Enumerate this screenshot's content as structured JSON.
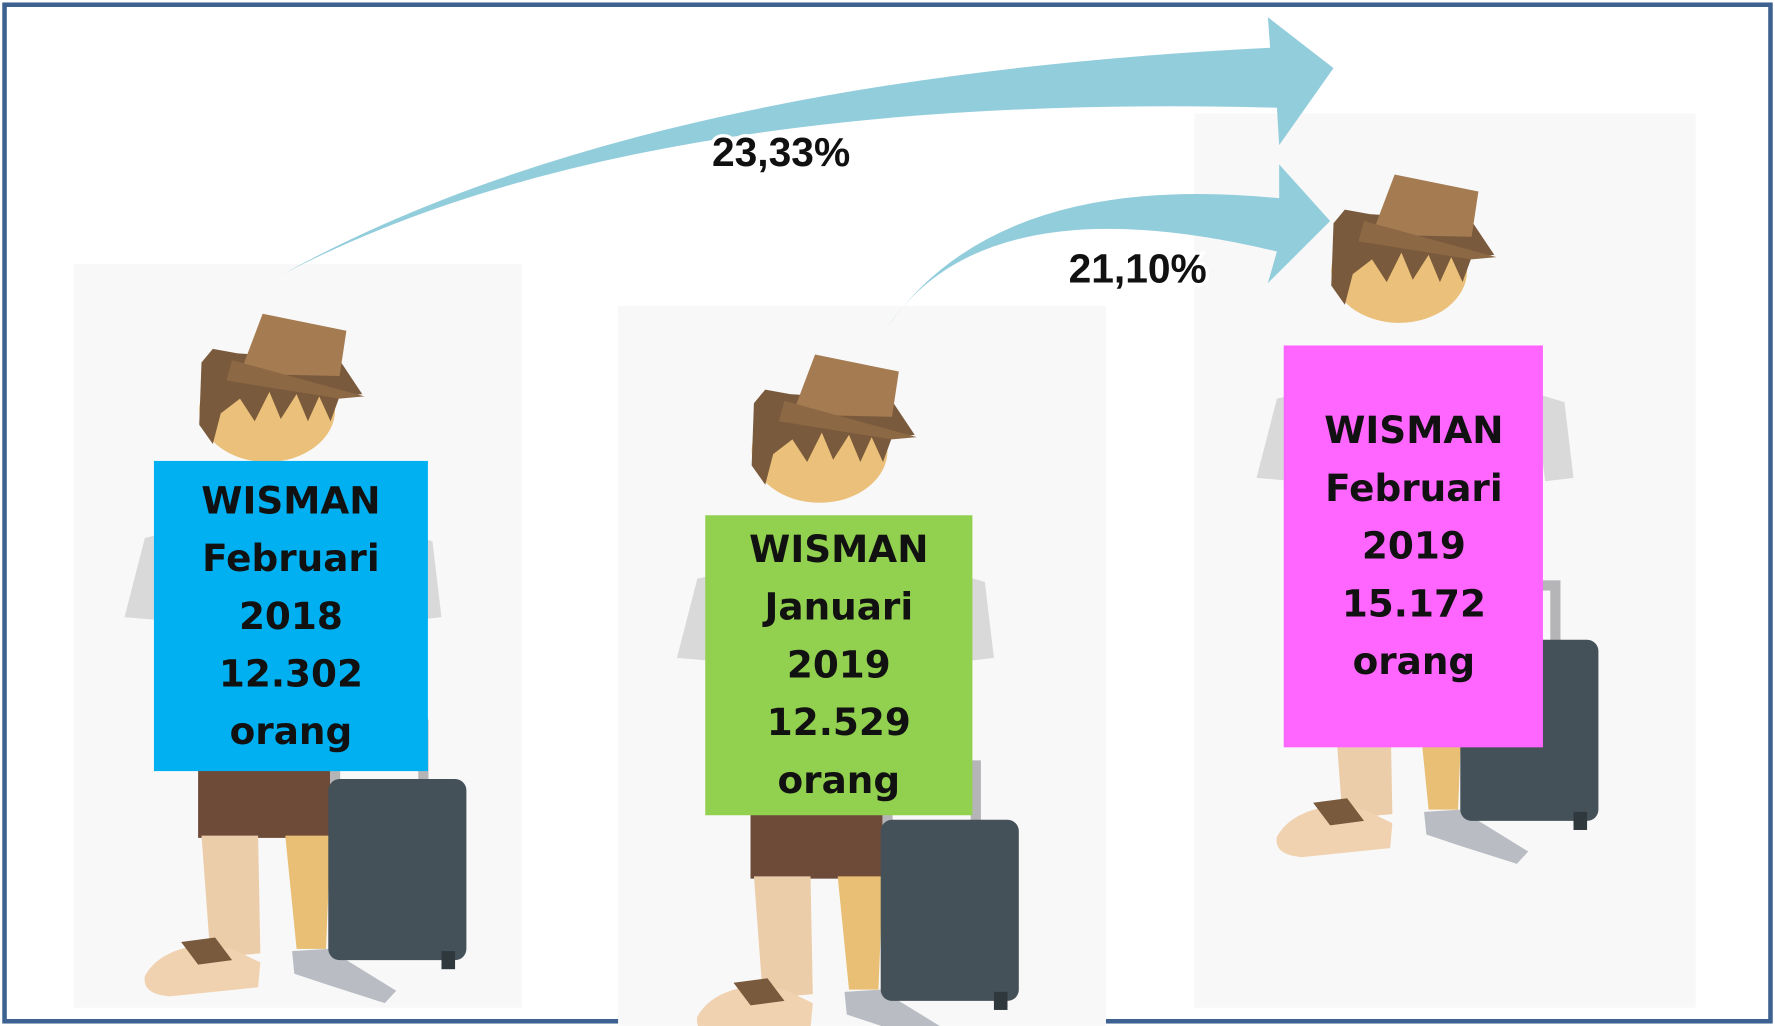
{
  "arrows": [
    {
      "label": "23,33%"
    },
    {
      "label": "21,10%"
    }
  ],
  "panels": [
    {
      "lines": [
        "WISMAN",
        "Februari",
        "2018",
        "12.302",
        "orang"
      ]
    },
    {
      "lines": [
        "WISMAN",
        "Januari",
        "2019",
        "12.529",
        "orang"
      ]
    },
    {
      "lines": [
        "WISMAN",
        "Februari",
        "2019",
        "15.172",
        "orang"
      ]
    }
  ]
}
